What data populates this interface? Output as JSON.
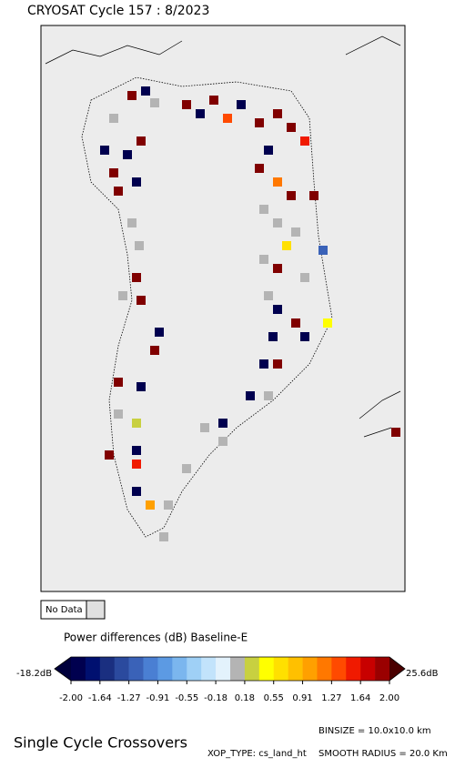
{
  "header": {
    "title": "CRYOSAT Cycle 157 : 8/2023"
  },
  "legend": {
    "no_data": "No Data",
    "title": "Power differences (dB) Baseline-E",
    "min_label": "-18.2dB",
    "max_label": "25.6dB",
    "ticks": [
      "-2.00",
      "-1.64",
      "-1.27",
      "-0.91",
      "-0.55",
      "-0.18",
      "0.18",
      "0.55",
      "0.91",
      "1.27",
      "1.64",
      "2.00"
    ],
    "low_color": "#00003c",
    "high_color": "#4a0000",
    "colors": [
      "#00004f",
      "#001070",
      "#1a2f80",
      "#2b4a9e",
      "#3a62b8",
      "#4a7fd3",
      "#5c9ae3",
      "#7bb6ee",
      "#9fd0f6",
      "#c2e3fb",
      "#e3f2fc",
      "#b4b4b4",
      "#c8d040",
      "#ffff00",
      "#ffe000",
      "#ffc000",
      "#ffa000",
      "#ff7800",
      "#ff4a00",
      "#f01a00",
      "#c80000",
      "#9a0000"
    ]
  },
  "footer": {
    "title": "Single Cycle Crossovers",
    "binsize": "BINSIZE = 10.0x10.0 km",
    "xop_type": "XOP_TYPE: cs_land_ht",
    "smooth_radius": "SMOOTH RADIUS =  20.0 Km"
  }
}
